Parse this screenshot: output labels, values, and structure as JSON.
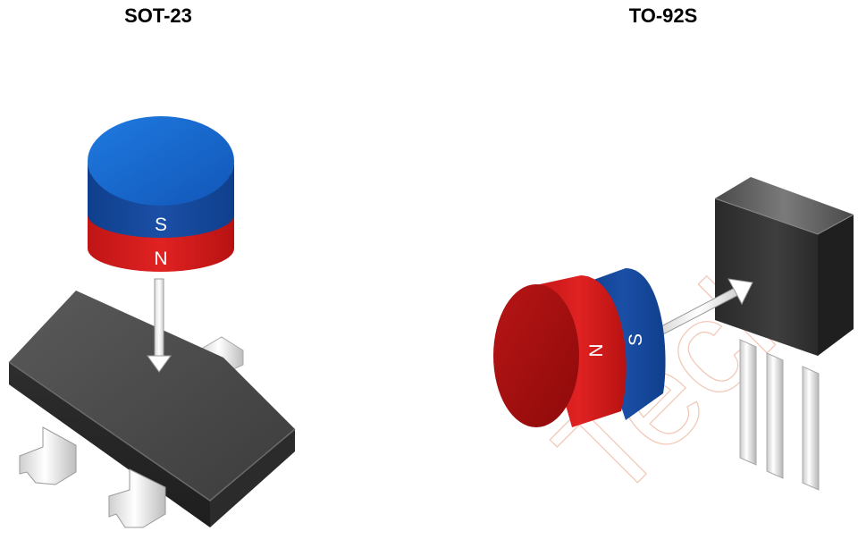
{
  "packages": {
    "left": {
      "title": "SOT-23"
    },
    "right": {
      "title": "TO-92S"
    }
  },
  "magnets": {
    "left": {
      "top_pole": "S",
      "bottom_pole": "N"
    },
    "right": {
      "front_pole": "N",
      "back_pole": "S"
    }
  },
  "watermark": {
    "text": "Tech"
  },
  "colors": {
    "magnet_blue": "#1565c0",
    "magnet_red": "#d62020",
    "package_body": "#3a3a3a",
    "lead_metal": "#e8e8e8"
  }
}
